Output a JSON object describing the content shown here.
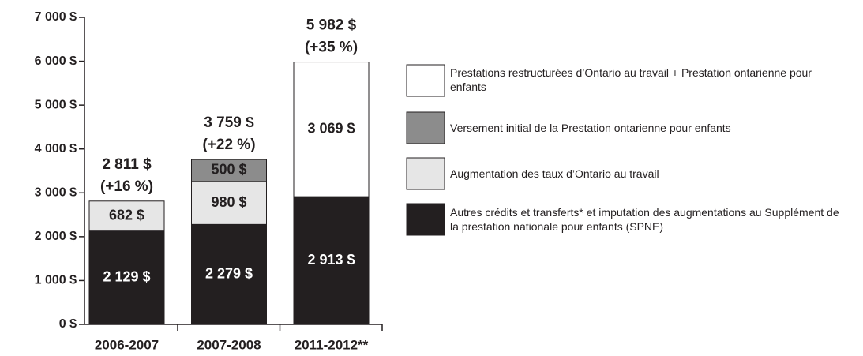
{
  "chart_data": {
    "type": "stacked_bar",
    "categories": [
      "2006-2007",
      "2007-2008",
      "2011-2012**"
    ],
    "series": [
      {
        "name": "Prestations restructurées d’Ontario au travail + Prestation ontarienne pour enfants",
        "color": "#ffffff",
        "values": [
          null,
          null,
          3069
        ],
        "value_labels": [
          null,
          null,
          "3 069 $"
        ]
      },
      {
        "name": "Versement initial de la Prestation ontarienne pour enfants",
        "color": "#8c8c8c",
        "values": [
          null,
          500,
          null
        ],
        "value_labels": [
          null,
          "500 $",
          null
        ]
      },
      {
        "name": "Augmentation des taux d’Ontario au travail",
        "color": "#e6e6e6",
        "values": [
          682,
          980,
          null
        ],
        "value_labels": [
          "682 $",
          "980 $",
          null
        ]
      },
      {
        "name": "Autres crédits et transferts* et imputation des augmentations au Supplément de la prestation nationale pour enfants (SPNE)",
        "color": "#231f20",
        "values": [
          2129,
          2279,
          2913
        ],
        "value_labels": [
          "2 129 $",
          "2 279 $",
          "2 913 $"
        ]
      }
    ],
    "totals": [
      2811,
      3759,
      5982
    ],
    "total_labels": [
      "2 811 $",
      "3 759 $",
      "5 982 $"
    ],
    "change_labels": [
      "(+16 %)",
      "(+22 %)",
      "(+35 %)"
    ],
    "ylim": [
      0,
      7000
    ],
    "yticks": [
      {
        "value": 0,
        "label": "0 $"
      },
      {
        "value": 1000,
        "label": "1 000 $"
      },
      {
        "value": 2000,
        "label": "2 000 $"
      },
      {
        "value": 3000,
        "label": "3 000 $"
      },
      {
        "value": 4000,
        "label": "4 000 $"
      },
      {
        "value": 5000,
        "label": "5 000 $"
      },
      {
        "value": 6000,
        "label": "6 000 $"
      },
      {
        "value": 7000,
        "label": "7 000 $"
      }
    ],
    "legend": "right"
  }
}
